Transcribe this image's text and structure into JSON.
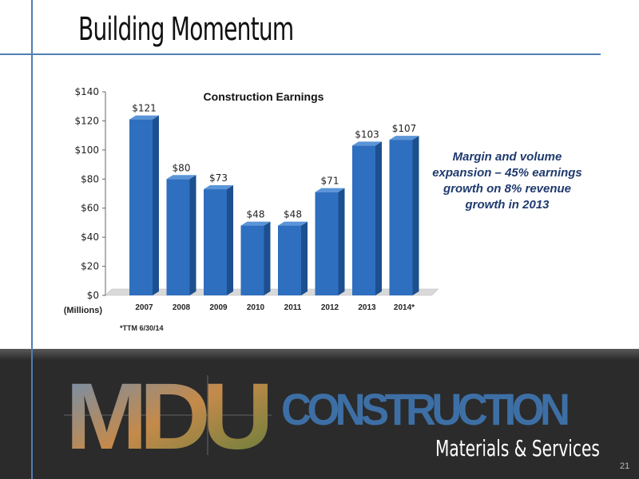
{
  "slide": {
    "title": "Building Momentum",
    "callout": "Margin and volume expansion – 45% earnings growth on 8% revenue growth in 2013",
    "footnote": "*TTM 6/30/14",
    "page_number": "21"
  },
  "branding": {
    "logo_letters": "MDU",
    "logo_word": "CONSTRUCTION",
    "tagline": "Materials & Services",
    "accent_color": "#3d6fa5"
  },
  "chart_data": {
    "type": "bar",
    "title": "Construction Earnings",
    "categories": [
      "2007",
      "2008",
      "2009",
      "2010",
      "2011",
      "2012",
      "2013",
      "2014*"
    ],
    "values": [
      121,
      80,
      73,
      48,
      48,
      71,
      103,
      107
    ],
    "data_labels": [
      "$121",
      "$80",
      "$73",
      "$48",
      "$48",
      "$71",
      "$103",
      "$107"
    ],
    "ylim": [
      0,
      140
    ],
    "y_ticks": [
      0,
      20,
      40,
      60,
      80,
      100,
      120,
      140
    ],
    "y_tick_labels": [
      "$0",
      "$20",
      "$40",
      "$60",
      "$80",
      "$100",
      "$120",
      "$140"
    ],
    "xlabel": "",
    "ylabel": "",
    "unit_label": "(Millions)",
    "grid": false,
    "legend": "none",
    "bar_color": "#2e6fbf"
  }
}
